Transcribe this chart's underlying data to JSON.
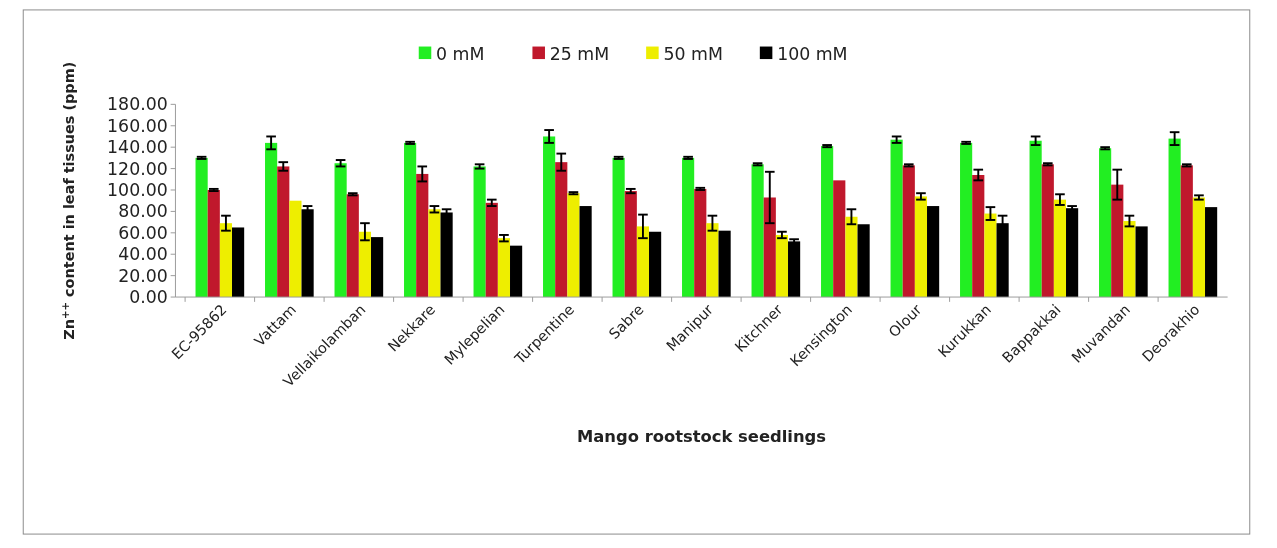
{
  "chart_data": {
    "type": "bar",
    "xlabel": "Mango rootstock seedlings",
    "ylabel": "Zn$^{++}$ content in leaf tissues (ppm)",
    "categories": [
      "EC-95862",
      "Vattam",
      "Vellaikolamban",
      "Nekkare",
      "Mylepelian",
      "Turpentine",
      "Sabre",
      "Manipur",
      "Kitchner",
      "Kensington",
      "Olour",
      "Kurukkan",
      "Bappakkai",
      "Muvandan",
      "Deorakhio"
    ],
    "series": [
      {
        "name": "0 mM",
        "color": "#22ee22",
        "values": [
          130,
          144,
          125,
          144,
          122,
          150,
          130,
          130,
          124,
          141,
          147,
          144,
          146,
          139,
          148
        ],
        "errors": [
          1,
          6,
          3,
          1,
          2,
          6,
          1,
          1,
          1,
          1,
          3,
          1,
          4,
          1,
          6
        ]
      },
      {
        "name": "25 mM",
        "color": "#c0182c",
        "values": [
          100,
          122,
          96,
          115,
          88,
          126,
          99,
          101,
          93,
          109,
          123,
          114,
          124,
          105,
          123
        ],
        "errors": [
          1,
          4,
          1,
          7,
          3,
          8,
          2,
          1,
          24,
          null,
          1,
          5,
          1,
          14,
          1
        ]
      },
      {
        "name": "50 mM",
        "color": "#eeee00",
        "values": [
          69,
          90,
          61,
          82,
          55,
          97,
          66,
          69,
          58,
          75,
          94,
          78,
          91,
          71,
          93
        ],
        "errors": [
          7,
          null,
          8,
          3,
          3,
          1,
          11,
          7,
          3,
          7,
          3,
          6,
          5,
          5,
          2
        ]
      },
      {
        "name": "100 mM",
        "color": "#000000",
        "values": [
          65,
          82,
          56,
          79,
          48,
          85,
          61,
          62,
          52,
          68,
          85,
          69,
          83,
          66,
          84
        ],
        "errors": [
          null,
          3,
          null,
          3,
          null,
          null,
          null,
          null,
          2,
          null,
          null,
          7,
          2,
          null,
          null
        ]
      }
    ],
    "ylim": [
      0,
      180
    ],
    "yticks": [
      {
        "value": 0,
        "label": "0.00"
      },
      {
        "value": 20,
        "label": "20.00"
      },
      {
        "value": 40,
        "label": "40.00"
      },
      {
        "value": 60,
        "label": "60.00"
      },
      {
        "value": 80,
        "label": "80.00"
      },
      {
        "value": 100,
        "label": "100.00"
      },
      {
        "value": 120,
        "label": "120.00"
      },
      {
        "value": 140,
        "label": "140.00"
      },
      {
        "value": 160,
        "label": "160.00"
      },
      {
        "value": 180,
        "label": "180.00"
      }
    ],
    "grid": false,
    "legend": "top"
  }
}
